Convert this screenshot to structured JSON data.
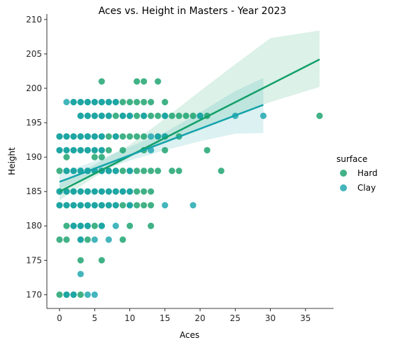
{
  "chart_data": {
    "type": "scatter",
    "title": "Aces vs. Height in Masters - Year 2023",
    "xlabel": "Aces",
    "ylabel": "Height",
    "xlim": [
      -1.8,
      39.0
    ],
    "ylim": [
      168,
      210.8
    ],
    "xticks": [
      0,
      5,
      10,
      15,
      20,
      25,
      30,
      35
    ],
    "yticks": [
      170,
      175,
      180,
      185,
      190,
      195,
      200,
      205,
      210
    ],
    "grid": false,
    "legend": {
      "title": "surface",
      "placement": "right",
      "entries": [
        "Hard",
        "Clay"
      ]
    },
    "series": [
      {
        "name": "Hard",
        "color": "#119F68",
        "points": [
          [
            0,
            170
          ],
          [
            1,
            170
          ],
          [
            2,
            170
          ],
          [
            3,
            170
          ],
          [
            3,
            175
          ],
          [
            6,
            175
          ],
          [
            0,
            178
          ],
          [
            1,
            178
          ],
          [
            3,
            178
          ],
          [
            4,
            178
          ],
          [
            9,
            178
          ],
          [
            1,
            180
          ],
          [
            2,
            180
          ],
          [
            3,
            180
          ],
          [
            4,
            180
          ],
          [
            5,
            180
          ],
          [
            6,
            180
          ],
          [
            10,
            180
          ],
          [
            13,
            180
          ],
          [
            0,
            183
          ],
          [
            1,
            183
          ],
          [
            2,
            183
          ],
          [
            3,
            183
          ],
          [
            4,
            183
          ],
          [
            5,
            183
          ],
          [
            6,
            183
          ],
          [
            7,
            183
          ],
          [
            8,
            183
          ],
          [
            9,
            183
          ],
          [
            10,
            183
          ],
          [
            11,
            183
          ],
          [
            12,
            183
          ],
          [
            13,
            183
          ],
          [
            0,
            185
          ],
          [
            1,
            185
          ],
          [
            2,
            185
          ],
          [
            3,
            185
          ],
          [
            4,
            185
          ],
          [
            5,
            185
          ],
          [
            6,
            185
          ],
          [
            7,
            185
          ],
          [
            8,
            185
          ],
          [
            9,
            185
          ],
          [
            10,
            185
          ],
          [
            11,
            185
          ],
          [
            12,
            185
          ],
          [
            13,
            185
          ],
          [
            0,
            188
          ],
          [
            1,
            188
          ],
          [
            2,
            188
          ],
          [
            3,
            188
          ],
          [
            4,
            188
          ],
          [
            5,
            188
          ],
          [
            6,
            188
          ],
          [
            7,
            188
          ],
          [
            8,
            188
          ],
          [
            9,
            188
          ],
          [
            10,
            188
          ],
          [
            11,
            188
          ],
          [
            12,
            188
          ],
          [
            13,
            188
          ],
          [
            14,
            188
          ],
          [
            16,
            188
          ],
          [
            17,
            188
          ],
          [
            23,
            188
          ],
          [
            1,
            190
          ],
          [
            5,
            190
          ],
          [
            6,
            190
          ],
          [
            0,
            191
          ],
          [
            1,
            191
          ],
          [
            2,
            191
          ],
          [
            3,
            191
          ],
          [
            4,
            191
          ],
          [
            5,
            191
          ],
          [
            6,
            191
          ],
          [
            7,
            191
          ],
          [
            9,
            191
          ],
          [
            12,
            191
          ],
          [
            15,
            191
          ],
          [
            21,
            191
          ],
          [
            0,
            193
          ],
          [
            1,
            193
          ],
          [
            2,
            193
          ],
          [
            3,
            193
          ],
          [
            4,
            193
          ],
          [
            5,
            193
          ],
          [
            6,
            193
          ],
          [
            7,
            193
          ],
          [
            8,
            193
          ],
          [
            9,
            193
          ],
          [
            10,
            193
          ],
          [
            11,
            193
          ],
          [
            12,
            193
          ],
          [
            14,
            193
          ],
          [
            15,
            193
          ],
          [
            17,
            193
          ],
          [
            3,
            196
          ],
          [
            4,
            196
          ],
          [
            5,
            196
          ],
          [
            6,
            196
          ],
          [
            7,
            196
          ],
          [
            8,
            196
          ],
          [
            9,
            196
          ],
          [
            10,
            196
          ],
          [
            11,
            196
          ],
          [
            12,
            196
          ],
          [
            13,
            196
          ],
          [
            14,
            196
          ],
          [
            15,
            196
          ],
          [
            16,
            196
          ],
          [
            17,
            196
          ],
          [
            18,
            196
          ],
          [
            19,
            196
          ],
          [
            20,
            196
          ],
          [
            21,
            196
          ],
          [
            37,
            196
          ],
          [
            2,
            198
          ],
          [
            3,
            198
          ],
          [
            4,
            198
          ],
          [
            5,
            198
          ],
          [
            6,
            198
          ],
          [
            7,
            198
          ],
          [
            8,
            198
          ],
          [
            9,
            198
          ],
          [
            10,
            198
          ],
          [
            11,
            198
          ],
          [
            12,
            198
          ],
          [
            13,
            198
          ],
          [
            15,
            198
          ],
          [
            11,
            201
          ],
          [
            12,
            201
          ],
          [
            14,
            201
          ],
          [
            6,
            201
          ]
        ],
        "fit": {
          "x0": 0,
          "y0": 185.0,
          "x1": 37,
          "y1": 204.2
        },
        "ci": [
          [
            0,
            183.7,
            186.1
          ],
          [
            5,
            187.1,
            188.9
          ],
          [
            10,
            190.0,
            191.8
          ],
          [
            15,
            192.2,
            195.6
          ],
          [
            20,
            194.3,
            199.6
          ],
          [
            25,
            196.2,
            203.5
          ],
          [
            30,
            198.0,
            207.3
          ],
          [
            37,
            200.2,
            208.4
          ]
        ]
      },
      {
        "name": "Clay",
        "color": "#15A3AB",
        "points": [
          [
            1,
            170
          ],
          [
            2,
            170
          ],
          [
            4,
            170
          ],
          [
            5,
            170
          ],
          [
            3,
            173
          ],
          [
            3,
            178
          ],
          [
            5,
            178
          ],
          [
            7,
            178
          ],
          [
            2,
            180
          ],
          [
            3,
            180
          ],
          [
            4,
            180
          ],
          [
            6,
            180
          ],
          [
            8,
            180
          ],
          [
            0,
            183
          ],
          [
            1,
            183
          ],
          [
            2,
            183
          ],
          [
            3,
            183
          ],
          [
            4,
            183
          ],
          [
            5,
            183
          ],
          [
            6,
            183
          ],
          [
            7,
            183
          ],
          [
            8,
            183
          ],
          [
            10,
            183
          ],
          [
            15,
            183
          ],
          [
            19,
            183
          ],
          [
            0,
            185
          ],
          [
            1,
            185
          ],
          [
            2,
            185
          ],
          [
            3,
            185
          ],
          [
            4,
            185
          ],
          [
            5,
            185
          ],
          [
            6,
            185
          ],
          [
            7,
            185
          ],
          [
            8,
            185
          ],
          [
            9,
            185
          ],
          [
            10,
            185
          ],
          [
            1,
            188
          ],
          [
            2,
            188
          ],
          [
            3,
            188
          ],
          [
            4,
            188
          ],
          [
            5,
            188
          ],
          [
            6,
            188
          ],
          [
            7,
            188
          ],
          [
            8,
            188
          ],
          [
            10,
            188
          ],
          [
            0,
            191
          ],
          [
            1,
            191
          ],
          [
            2,
            191
          ],
          [
            3,
            191
          ],
          [
            4,
            191
          ],
          [
            5,
            191
          ],
          [
            6,
            191
          ],
          [
            13,
            191
          ],
          [
            0,
            193
          ],
          [
            1,
            193
          ],
          [
            2,
            193
          ],
          [
            3,
            193
          ],
          [
            4,
            193
          ],
          [
            5,
            193
          ],
          [
            6,
            193
          ],
          [
            8,
            193
          ],
          [
            13,
            193
          ],
          [
            14,
            193
          ],
          [
            15,
            193
          ],
          [
            3,
            196
          ],
          [
            4,
            196
          ],
          [
            5,
            196
          ],
          [
            6,
            196
          ],
          [
            7,
            196
          ],
          [
            9,
            196
          ],
          [
            10,
            196
          ],
          [
            12,
            196
          ],
          [
            15,
            196
          ],
          [
            20,
            196
          ],
          [
            25,
            196
          ],
          [
            29,
            196
          ],
          [
            1,
            198
          ],
          [
            2,
            198
          ],
          [
            3,
            198
          ],
          [
            4,
            198
          ],
          [
            5,
            198
          ],
          [
            6,
            198
          ],
          [
            7,
            198
          ],
          [
            8,
            198
          ]
        ],
        "fit": {
          "x0": 0,
          "y0": 186.4,
          "x1": 29,
          "y1": 197.6
        },
        "ci": [
          [
            0,
            185.3,
            187.6
          ],
          [
            5,
            187.7,
            189.4
          ],
          [
            10,
            189.5,
            191.5
          ],
          [
            15,
            191.0,
            193.6
          ],
          [
            20,
            192.3,
            196.5
          ],
          [
            25,
            193.4,
            199.6
          ],
          [
            29,
            193.5,
            201.5
          ]
        ]
      }
    ]
  }
}
